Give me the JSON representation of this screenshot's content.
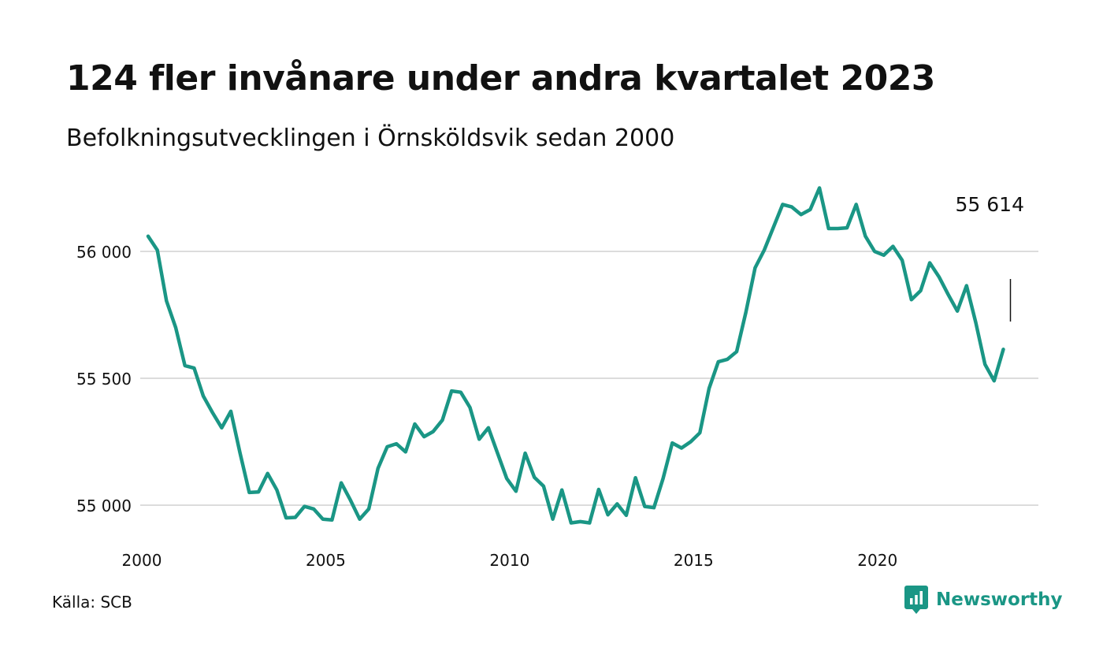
{
  "header": {
    "title": "124 fler invånare under andra kvartalet 2023",
    "subtitle": "Befolkningsutvecklingen i Örnsköldsvik sedan 2000"
  },
  "footer": {
    "source": "Källa: SCB",
    "brand": "Newsworthy",
    "brand_icon": "newsworthy-logo-icon",
    "brand_color": "#1a9685"
  },
  "colors": {
    "line": "#1a9685",
    "grid": "#dcdcdc",
    "text": "#111111"
  },
  "chart_data": {
    "type": "line",
    "x_unit": "quarter",
    "x_start": "2000 Q1",
    "xlim": [
      2000,
      2024
    ],
    "ylim": [
      54880,
      56300
    ],
    "x_ticks": [
      {
        "value": 2000,
        "label": "2000"
      },
      {
        "value": 2005,
        "label": "2005"
      },
      {
        "value": 2010,
        "label": "2010"
      },
      {
        "value": 2015,
        "label": "2015"
      },
      {
        "value": 2020,
        "label": "2020"
      }
    ],
    "y_ticks": [
      {
        "value": 55000,
        "label": "55 000"
      },
      {
        "value": 55500,
        "label": "55 500"
      },
      {
        "value": 56000,
        "label": "56 000"
      }
    ],
    "grid": true,
    "annotation": {
      "label": "55 614",
      "value": 55614
    },
    "series": [
      {
        "values": [
          56060,
          56005,
          55805,
          55700,
          55550,
          55540,
          55430,
          55365,
          55305,
          55370,
          55205,
          55050,
          55052,
          55125,
          55060,
          54950,
          54952,
          54995,
          54985,
          54945,
          54942,
          55088,
          55020,
          54945,
          54985,
          55145,
          55230,
          55242,
          55210,
          55320,
          55270,
          55290,
          55335,
          55450,
          55445,
          55385,
          55260,
          55305,
          55205,
          55105,
          55055,
          55205,
          55110,
          55075,
          54945,
          55060,
          54930,
          54935,
          54930,
          55062,
          54962,
          55005,
          54960,
          55108,
          54995,
          54990,
          55105,
          55245,
          55225,
          55250,
          55285,
          55460,
          55565,
          55575,
          55605,
          55760,
          55935,
          56005,
          56095,
          56185,
          56175,
          56145,
          56165,
          56250,
          56090,
          56090,
          56093,
          56185,
          56060,
          56000,
          55985,
          56020,
          55965,
          55810,
          55845,
          55955,
          55900,
          55830,
          55765,
          55865,
          55720,
          55555,
          55490,
          55614
        ]
      }
    ]
  }
}
